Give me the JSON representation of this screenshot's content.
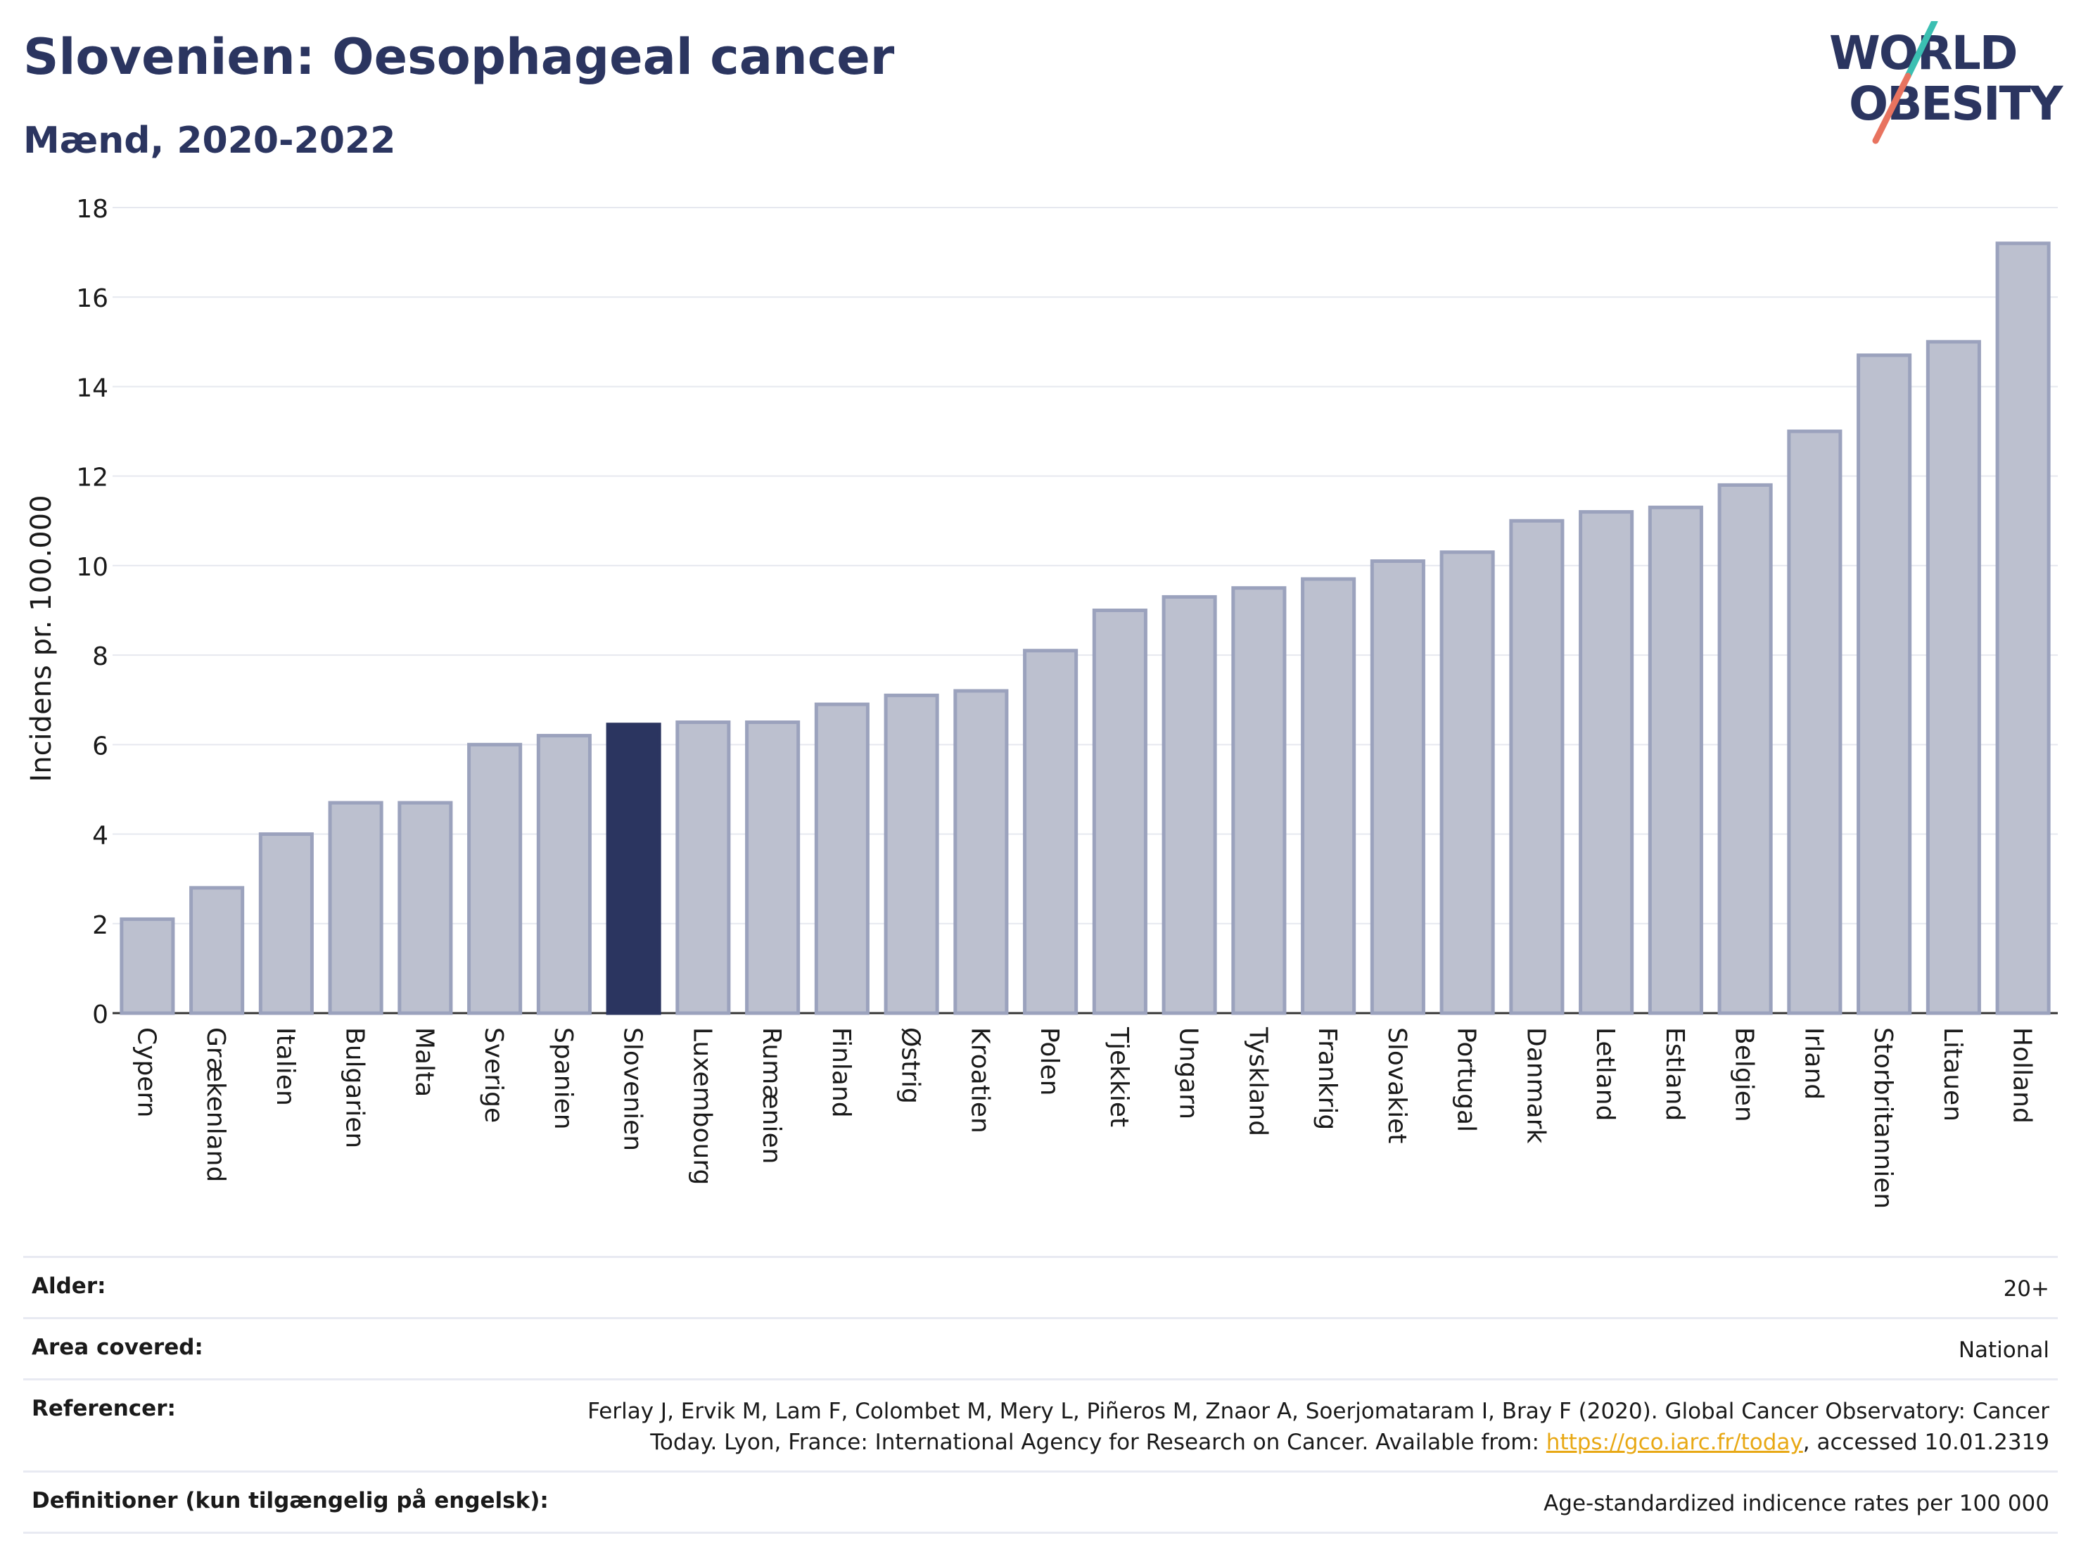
{
  "header": {
    "title": "Slovenien: Oesophageal cancer",
    "subtitle": "Mænd, 2020-2022"
  },
  "logo": {
    "line1": "WORLD",
    "line2": "OBESITY"
  },
  "colors": {
    "bar": "#bcc0cf",
    "bar_stroke": "#9ba2bd",
    "highlight": "#2b3560",
    "grid": "#e6e8ef"
  },
  "chart_data": {
    "type": "bar",
    "ylabel": "Incidens pr. 100.000",
    "xlabel": "",
    "ylim": [
      0,
      18
    ],
    "yticks": [
      0,
      2,
      4,
      6,
      8,
      10,
      12,
      14,
      16,
      18
    ],
    "highlight": "Slovenien",
    "categories": [
      "Cypern",
      "Grækenland",
      "Italien",
      "Bulgarien",
      "Malta",
      "Sverige",
      "Spanien",
      "Slovenien",
      "Luxembourg",
      "Rumænien",
      "Finland",
      "Østrig",
      "Kroatien",
      "Polen",
      "Tjekkiet",
      "Ungarn",
      "Tyskland",
      "Frankrig",
      "Slovakiet",
      "Portugal",
      "Danmark",
      "Letland",
      "Estland",
      "Belgien",
      "Irland",
      "Storbritannien",
      "Litauen",
      "Holland"
    ],
    "values": [
      2.1,
      2.8,
      4.0,
      4.7,
      4.7,
      6.0,
      6.2,
      6.45,
      6.5,
      6.5,
      6.9,
      7.1,
      7.2,
      8.1,
      9.0,
      9.3,
      9.5,
      9.7,
      10.1,
      10.3,
      11.0,
      11.2,
      11.3,
      11.8,
      13.0,
      14.7,
      15.0,
      17.2
    ]
  },
  "meta": {
    "age_label": "Alder:",
    "age_value": "20+",
    "area_label": "Area covered:",
    "area_value": "National",
    "ref_label": "Referencer:",
    "ref_text_1": "Ferlay J, Ervik M, Lam F, Colombet M, Mery L, Piñeros M, Znaor A, Soerjomataram I, Bray F (2020). Global Cancer Observatory: Cancer",
    "ref_text_2": "Today. Lyon, France: International Agency for Research on Cancer. Available from: ",
    "ref_link": "https://gco.iarc.fr/today",
    "ref_text_3": ", accessed 10.01.2319",
    "def_label": "Definitioner (kun tilgængelig på engelsk):",
    "def_value": "Age-standardized indicence rates per 100 000"
  }
}
